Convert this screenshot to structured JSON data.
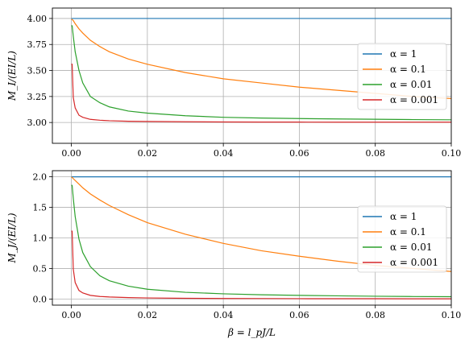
{
  "chart_data": [
    {
      "type": "line",
      "ylabel": "M_I/(EI/L)",
      "xlabel": "",
      "xlim": [
        -0.005,
        0.1
      ],
      "ylim": [
        2.8,
        4.1
      ],
      "xticks": [
        0.0,
        0.02,
        0.04,
        0.06,
        0.08,
        0.1
      ],
      "xtick_labels": [
        "0.00",
        "0.02",
        "0.04",
        "0.06",
        "0.08",
        "0.10"
      ],
      "yticks": [
        3.0,
        3.25,
        3.5,
        3.75,
        4.0
      ],
      "ytick_labels": [
        "3.00",
        "3.25",
        "3.50",
        "3.75",
        "4.00"
      ],
      "grid": true,
      "legend_position": "right",
      "x": [
        0.0002,
        0.0005,
        0.001,
        0.002,
        0.003,
        0.005,
        0.0075,
        0.01,
        0.015,
        0.02,
        0.03,
        0.04,
        0.05,
        0.06,
        0.07,
        0.08,
        0.09,
        0.1
      ],
      "series": [
        {
          "name": "α = 1",
          "color": "#1f77b4",
          "values": [
            4.0,
            4.0,
            4.0,
            4.0,
            4.0,
            4.0,
            4.0,
            4.0,
            4.0,
            4.0,
            4.0,
            4.0,
            4.0,
            4.0,
            4.0,
            4.0,
            4.0,
            4.0
          ]
        },
        {
          "name": "α = 0.1",
          "color": "#ff7f0e",
          "values": [
            3.99,
            3.98,
            3.95,
            3.9,
            3.86,
            3.79,
            3.73,
            3.68,
            3.61,
            3.56,
            3.48,
            3.42,
            3.38,
            3.34,
            3.31,
            3.28,
            3.25,
            3.23
          ]
        },
        {
          "name": "α = 0.01",
          "color": "#2ca02c",
          "values": [
            3.93,
            3.83,
            3.68,
            3.5,
            3.38,
            3.25,
            3.19,
            3.15,
            3.11,
            3.09,
            3.065,
            3.05,
            3.043,
            3.038,
            3.034,
            3.031,
            3.028,
            3.026
          ]
        },
        {
          "name": "α = 0.001",
          "color": "#d62728",
          "values": [
            3.56,
            3.24,
            3.14,
            3.07,
            3.05,
            3.03,
            3.022,
            3.017,
            3.012,
            3.01,
            3.007,
            3.005,
            3.004,
            3.004,
            3.003,
            3.003,
            3.003,
            3.003
          ]
        }
      ]
    },
    {
      "type": "line",
      "ylabel": "M_J/(EI/L)",
      "xlabel": "β = l_pJ/L",
      "xlim": [
        -0.005,
        0.1
      ],
      "ylim": [
        -0.1,
        2.1
      ],
      "xticks": [
        0.0,
        0.02,
        0.04,
        0.06,
        0.08,
        0.1
      ],
      "xtick_labels": [
        "0.00",
        "0.02",
        "0.04",
        "0.06",
        "0.08",
        "0.10"
      ],
      "yticks": [
        0.0,
        0.5,
        1.0,
        1.5,
        2.0
      ],
      "ytick_labels": [
        "0.0",
        "0.5",
        "1.0",
        "1.5",
        "2.0"
      ],
      "grid": true,
      "legend_position": "right",
      "x": [
        0.0002,
        0.0005,
        0.001,
        0.002,
        0.003,
        0.005,
        0.0075,
        0.01,
        0.015,
        0.02,
        0.03,
        0.04,
        0.05,
        0.06,
        0.07,
        0.08,
        0.09,
        0.1
      ],
      "series": [
        {
          "name": "α = 1",
          "color": "#1f77b4",
          "values": [
            2.0,
            2.0,
            2.0,
            2.0,
            2.0,
            2.0,
            2.0,
            2.0,
            2.0,
            2.0,
            2.0,
            2.0,
            2.0,
            2.0,
            2.0,
            2.0,
            2.0,
            2.0
          ]
        },
        {
          "name": "α = 0.1",
          "color": "#ff7f0e",
          "values": [
            1.99,
            1.97,
            1.94,
            1.88,
            1.82,
            1.72,
            1.62,
            1.53,
            1.38,
            1.25,
            1.06,
            0.91,
            0.79,
            0.7,
            0.62,
            0.55,
            0.5,
            0.45
          ]
        },
        {
          "name": "α = 0.01",
          "color": "#2ca02c",
          "values": [
            1.86,
            1.65,
            1.35,
            0.98,
            0.76,
            0.53,
            0.38,
            0.3,
            0.21,
            0.16,
            0.11,
            0.085,
            0.07,
            0.06,
            0.052,
            0.046,
            0.041,
            0.038
          ]
        },
        {
          "name": "α = 0.001",
          "color": "#d62728",
          "values": [
            1.11,
            0.49,
            0.27,
            0.14,
            0.1,
            0.06,
            0.042,
            0.033,
            0.023,
            0.018,
            0.012,
            0.009,
            0.008,
            0.006,
            0.005,
            0.005,
            0.004,
            0.004
          ]
        }
      ]
    }
  ]
}
